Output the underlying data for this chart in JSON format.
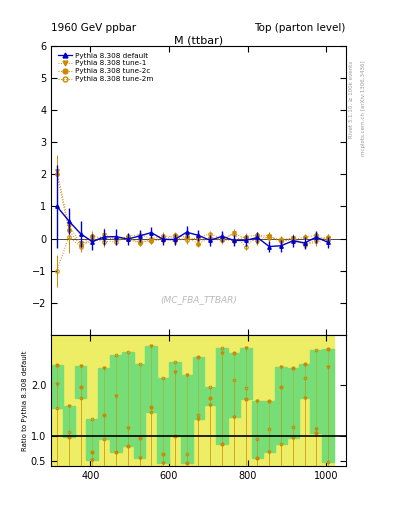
{
  "title_left": "1960 GeV ppbar",
  "title_right": "Top (parton level)",
  "plot_title": "M (ttbar)",
  "watermark": "(MC_FBA_TTBAR)",
  "right_label_top": "Rivet 3.1.10, ≥ 100k events",
  "right_label_bottom": "mcplots.cern.ch [arXiv:1306.3436]",
  "ylabel_ratio": "Ratio to Pythia 8.308 default",
  "xlim": [
    300,
    1050
  ],
  "ylim_main": [
    -3,
    6
  ],
  "ylim_ratio": [
    0.4,
    3.0
  ],
  "series": [
    {
      "label": "Pythia 8.308 default",
      "color": "#0000cc",
      "marker": "^",
      "linestyle": "-",
      "filled": true
    },
    {
      "label": "Pythia 8.308 tune-1",
      "color": "#cc8800",
      "marker": "v",
      "linestyle": ":",
      "filled": true
    },
    {
      "label": "Pythia 8.308 tune-2c",
      "color": "#cc8800",
      "marker": "o",
      "linestyle": ":",
      "filled": true
    },
    {
      "label": "Pythia 8.308 tune-2m",
      "color": "#cc8800",
      "marker": "o",
      "linestyle": ":",
      "filled": false
    }
  ],
  "x_bins_edges": [
    300,
    330,
    360,
    390,
    420,
    450,
    480,
    510,
    540,
    570,
    600,
    630,
    660,
    690,
    720,
    750,
    780,
    810,
    840,
    870,
    900,
    930,
    960,
    990,
    1020
  ],
  "background_color": "#ffffff",
  "ratio_band_green": "#77dd77",
  "ratio_band_yellow": "#eeee66"
}
